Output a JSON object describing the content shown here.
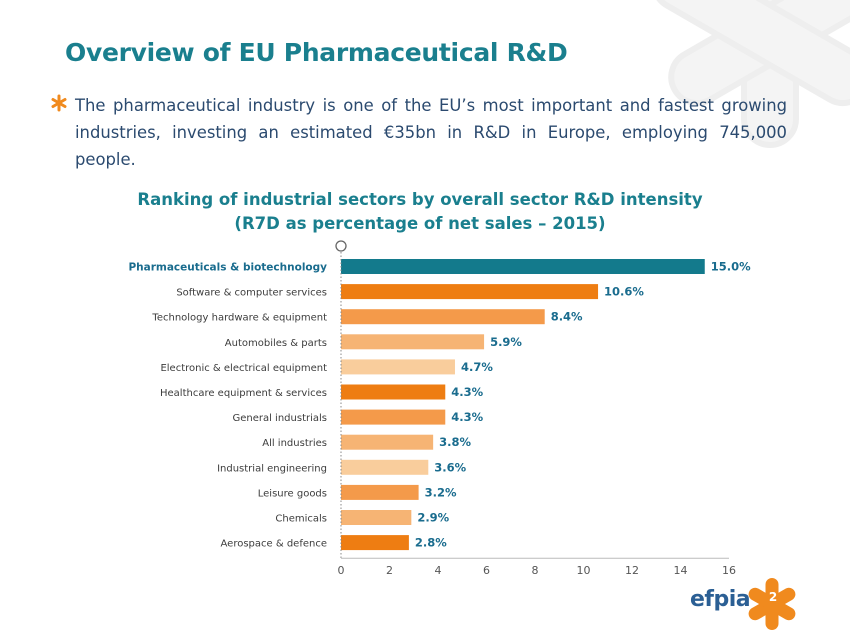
{
  "slide": {
    "title": "Overview of EU Pharmaceutical R&D",
    "bullet": "The pharmaceutical industry is one of the EU’s most important and fastest growing industries, investing an estimated €35bn in R&D in Europe, employing 745,000 people.",
    "page_number": "2",
    "logo_text": "efpia"
  },
  "colors": {
    "accent_teal": "#1a7f8e",
    "text_blue": "#2b4a6f",
    "logo_orange": "#f08a1e"
  },
  "chart_data": {
    "type": "bar",
    "orientation": "horizontal",
    "title": "Ranking of industrial sectors by overall sector R&D intensity",
    "subtitle": "(R7D as percentage of net sales – 2015)",
    "categories": [
      "Pharmaceuticals & biotechnology",
      "Software & computer services",
      "Technology hardware & equipment",
      "Automobiles & parts",
      "Electronic & electrical equipment",
      "Healthcare equipment & services",
      "General industrials",
      "All industries",
      "Industrial engineering",
      "Leisure goods",
      "Chemicals",
      "Aerospace & defence"
    ],
    "values": [
      15.0,
      10.6,
      8.4,
      5.9,
      4.7,
      4.3,
      4.3,
      3.8,
      3.6,
      3.2,
      2.9,
      2.8
    ],
    "value_labels": [
      "15.0%",
      "10.6%",
      "8.4%",
      "5.9%",
      "4.7%",
      "4.3%",
      "4.3%",
      "3.8%",
      "3.6%",
      "3.2%",
      "2.9%",
      "2.8%"
    ],
    "bar_colors": [
      "#137a8c",
      "#ee7d12",
      "#f49a4a",
      "#f6b474",
      "#f9cd9c",
      "#ee7d12",
      "#f49a4a",
      "#f6b474",
      "#f9cd9c",
      "#f49a4a",
      "#f6b474",
      "#ee7d12"
    ],
    "xlim": [
      0,
      16
    ],
    "xticks": [
      "0",
      "2",
      "4",
      "6",
      "8",
      "10",
      "12",
      "14",
      "16"
    ],
    "grid": false,
    "legend": "none"
  }
}
